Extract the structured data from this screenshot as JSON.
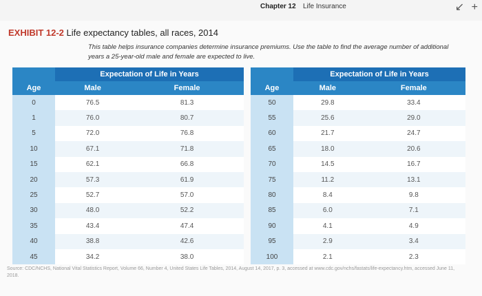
{
  "header": {
    "chapter": "Chapter 12",
    "section": "Life Insurance",
    "icons": [
      "arrow-icon",
      "plus-icon"
    ]
  },
  "exhibit": {
    "label": "EXHIBIT 12-2",
    "title": "Life expectancy tables, all races, 2014",
    "description": "This table helps insurance companies determine insurance premiums. Use the table to find the average number of additional years a 25-year-old male and female are expected to live."
  },
  "table": {
    "group_heading": "Expectation of Life in Years",
    "col_age": "Age",
    "col_male": "Male",
    "col_female": "Female",
    "left_rows": [
      {
        "age": "0",
        "male": "76.5",
        "female": "81.3"
      },
      {
        "age": "1",
        "male": "76.0",
        "female": "80.7"
      },
      {
        "age": "5",
        "male": "72.0",
        "female": "76.8"
      },
      {
        "age": "10",
        "male": "67.1",
        "female": "71.8"
      },
      {
        "age": "15",
        "male": "62.1",
        "female": "66.8"
      },
      {
        "age": "20",
        "male": "57.3",
        "female": "61.9"
      },
      {
        "age": "25",
        "male": "52.7",
        "female": "57.0"
      },
      {
        "age": "30",
        "male": "48.0",
        "female": "52.2"
      },
      {
        "age": "35",
        "male": "43.4",
        "female": "47.4"
      },
      {
        "age": "40",
        "male": "38.8",
        "female": "42.6"
      },
      {
        "age": "45",
        "male": "34.2",
        "female": "38.0"
      }
    ],
    "right_rows": [
      {
        "age": "50",
        "male": "29.8",
        "female": "33.4"
      },
      {
        "age": "55",
        "male": "25.6",
        "female": "29.0"
      },
      {
        "age": "60",
        "male": "21.7",
        "female": "24.7"
      },
      {
        "age": "65",
        "male": "18.0",
        "female": "20.6"
      },
      {
        "age": "70",
        "male": "14.5",
        "female": "16.7"
      },
      {
        "age": "75",
        "male": "11.2",
        "female": "13.1"
      },
      {
        "age": "80",
        "male": "8.4",
        "female": "9.8"
      },
      {
        "age": "85",
        "male": "6.0",
        "female": "7.1"
      },
      {
        "age": "90",
        "male": "4.1",
        "female": "4.9"
      },
      {
        "age": "95",
        "male": "2.9",
        "female": "3.4"
      },
      {
        "age": "100",
        "male": "2.1",
        "female": "2.3"
      }
    ]
  },
  "source": "Source: CDC/NCHS, National Vital Statistics Report, Volume 66, Number 4, United States Life Tables, 2014, August 14, 2017, p. 3, accessed at www.cdc.gov/nchs/fastats/life-expectancy.htm, accessed June 11, 2018."
}
